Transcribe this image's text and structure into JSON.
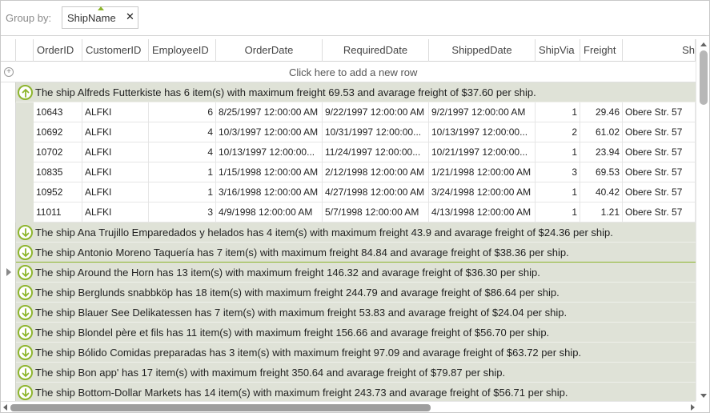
{
  "group_panel": {
    "label": "Group by:",
    "chip_label": "ShipName",
    "close_glyph": "✕"
  },
  "columns": [
    "OrderID",
    "CustomerID",
    "EmployeeID",
    "OrderDate",
    "RequiredDate",
    "ShippedDate",
    "ShipVia",
    "Freight",
    "Sh"
  ],
  "new_row_text": "Click here to add a new row",
  "expanded_group": {
    "text": "The ship Alfreds Futterkiste has 6 item(s) with maximum freight 69.53 and avarage freight of $37.60 per ship.",
    "rows": [
      [
        "10643",
        "ALFKI",
        "6",
        "8/25/1997 12:00:00 AM",
        "9/22/1997 12:00:00 AM",
        "9/2/1997 12:00:00 AM",
        "1",
        "29.46",
        "Obere Str. 57"
      ],
      [
        "10692",
        "ALFKI",
        "4",
        "10/3/1997 12:00:00 AM",
        "10/31/1997 12:00:00...",
        "10/13/1997 12:00:00...",
        "2",
        "61.02",
        "Obere Str. 57"
      ],
      [
        "10702",
        "ALFKI",
        "4",
        "10/13/1997 12:00:00...",
        "11/24/1997 12:00:00...",
        "10/21/1997 12:00:00...",
        "1",
        "23.94",
        "Obere Str. 57"
      ],
      [
        "10835",
        "ALFKI",
        "1",
        "1/15/1998 12:00:00 AM",
        "2/12/1998 12:00:00 AM",
        "1/21/1998 12:00:00 AM",
        "3",
        "69.53",
        "Obere Str. 57"
      ],
      [
        "10952",
        "ALFKI",
        "1",
        "3/16/1998 12:00:00 AM",
        "4/27/1998 12:00:00 AM",
        "3/24/1998 12:00:00 AM",
        "1",
        "40.42",
        "Obere Str. 57"
      ],
      [
        "11011",
        "ALFKI",
        "3",
        "4/9/1998 12:00:00 AM",
        "5/7/1998 12:00:00 AM",
        "4/13/1998 12:00:00 AM",
        "1",
        "1.21",
        "Obere Str. 57"
      ]
    ]
  },
  "collapsed_groups": [
    "The ship Ana Trujillo Emparedados y helados has 4 item(s) with maximum freight 43.9 and avarage freight of $24.36 per ship.",
    "The ship Antonio Moreno Taquería has 7 item(s) with maximum freight 84.84 and avarage freight of $38.36 per ship.",
    "The ship Around the Horn has 13 item(s) with maximum freight 146.32 and avarage freight of $36.30 per ship.",
    "The ship Berglunds snabbköp has 18 item(s) with maximum freight 244.79 and avarage freight of $86.64 per ship.",
    "The ship Blauer See Delikatessen has 7 item(s) with maximum freight 53.83 and avarage freight of $24.04 per ship.",
    "The ship Blondel père et fils has 11 item(s) with maximum freight 156.66 and avarage freight of $56.70 per ship.",
    "The ship Bólido Comidas preparadas has 3 item(s) with maximum freight 97.09 and avarage freight of $63.72 per ship.",
    "The ship Bon app' has 17 item(s) with maximum freight 350.64 and avarage freight of $79.87 per ship.",
    "The ship Bottom-Dollar Markets has 14 item(s) with maximum freight 243.73 and avarage freight of $56.71 per ship."
  ],
  "current_row_index": 2,
  "colors": {
    "accent": "#8db52c",
    "group_background": "#dfe2d7"
  }
}
